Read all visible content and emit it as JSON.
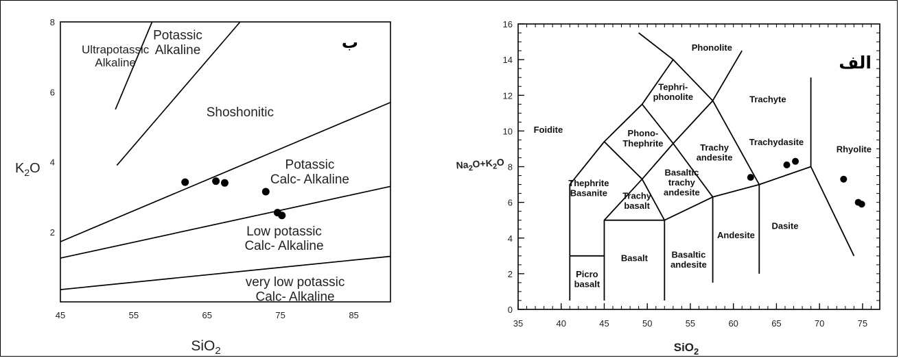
{
  "chart_data": [
    {
      "type": "scatter",
      "panel_tag": "ب",
      "xlabel": "SiO2",
      "ylabel": "K2O",
      "xlim": [
        45,
        90
      ],
      "ylim": [
        0,
        8
      ],
      "xticks": [
        45,
        55,
        65,
        75,
        85
      ],
      "yticks": [
        2,
        4,
        6,
        8
      ],
      "boundary_lines": [
        [
          [
            52.5,
            5.5
          ],
          [
            57.5,
            8.0
          ]
        ],
        [
          [
            52.7,
            3.9
          ],
          [
            69.5,
            8.0
          ]
        ],
        [
          [
            45,
            1.72
          ],
          [
            90,
            5.7
          ]
        ],
        [
          [
            45,
            1.25
          ],
          [
            90,
            3.3
          ]
        ],
        [
          [
            45,
            0.35
          ],
          [
            90,
            1.3
          ]
        ]
      ],
      "regions": [
        {
          "text": [
            "Ultrapotassic",
            "Alkaline"
          ],
          "x": 52.5,
          "y": 7.1,
          "size": 17
        },
        {
          "text": [
            "Potassic",
            "Alkaline"
          ],
          "x": 61.0,
          "y": 7.5,
          "size": 19
        },
        {
          "text": [
            "Shoshonitic"
          ],
          "x": 69.5,
          "y": 5.3,
          "size": 19
        },
        {
          "text": [
            "Potassic",
            "Calc- Alkaline"
          ],
          "x": 79.0,
          "y": 3.8,
          "size": 19
        },
        {
          "text": [
            "Low potassic",
            "Calc- Alkaline"
          ],
          "x": 75.5,
          "y": 1.9,
          "size": 19
        },
        {
          "text": [
            "very low potassic",
            "Calc- Alkaline"
          ],
          "x": 77.0,
          "y": 0.45,
          "size": 19
        }
      ],
      "points": [
        {
          "x": 62.0,
          "y": 3.42
        },
        {
          "x": 66.2,
          "y": 3.45
        },
        {
          "x": 67.4,
          "y": 3.4
        },
        {
          "x": 73.0,
          "y": 3.15
        },
        {
          "x": 74.6,
          "y": 2.55
        },
        {
          "x": 75.2,
          "y": 2.47
        }
      ]
    },
    {
      "type": "scatter",
      "panel_tag": "الف",
      "xlabel": "SiO2",
      "ylabel": "Na2O+K2O",
      "xlim": [
        35,
        77
      ],
      "ylim": [
        0,
        16
      ],
      "xticks": [
        35,
        40,
        45,
        50,
        55,
        60,
        65,
        70,
        75
      ],
      "yticks": [
        0,
        2,
        4,
        6,
        8,
        10,
        12,
        14,
        16
      ],
      "boundary_lines": [
        [
          [
            41,
            0.5
          ],
          [
            41,
            7.0
          ],
          [
            45,
            9.4
          ],
          [
            49.4,
            11.5
          ],
          [
            53,
            14
          ],
          [
            57.6,
            11.7
          ],
          [
            63,
            7.0
          ],
          [
            69,
            8.0
          ],
          [
            69,
            13
          ]
        ],
        [
          [
            45,
            0.5
          ],
          [
            45,
            5.0
          ],
          [
            52,
            5.0
          ],
          [
            57.6,
            6.3
          ],
          [
            63,
            7.0
          ]
        ],
        [
          [
            52,
            0.5
          ],
          [
            52,
            5.0
          ]
        ],
        [
          [
            57.6,
            1.5
          ],
          [
            57.6,
            6.3
          ]
        ],
        [
          [
            63,
            2.0
          ],
          [
            63,
            7.0
          ]
        ],
        [
          [
            41,
            3.0
          ],
          [
            45,
            3.0
          ]
        ],
        [
          [
            45,
            5.0
          ],
          [
            49.4,
            7.3
          ],
          [
            53,
            9.3
          ],
          [
            57.6,
            11.7
          ],
          [
            61,
            14.5
          ]
        ],
        [
          [
            49.4,
            7.3
          ],
          [
            52,
            5.0
          ]
        ],
        [
          [
            53,
            9.3
          ],
          [
            57.6,
            6.3
          ]
        ],
        [
          [
            45,
            9.4
          ],
          [
            49.4,
            7.3
          ]
        ],
        [
          [
            49.4,
            11.5
          ],
          [
            53,
            9.3
          ]
        ],
        [
          [
            53,
            14
          ],
          [
            49,
            15.5
          ]
        ],
        [
          [
            69,
            8.0
          ],
          [
            74,
            3.0
          ]
        ]
      ],
      "regions": [
        {
          "text": [
            "Phonolite"
          ],
          "x": 57.5,
          "y": 14.5
        },
        {
          "text": [
            "Tephri-",
            "phonolite"
          ],
          "x": 53.0,
          "y": 12.3
        },
        {
          "text": [
            "Trachyte"
          ],
          "x": 64.0,
          "y": 11.6
        },
        {
          "text": [
            "Foidite"
          ],
          "x": 38.5,
          "y": 9.9
        },
        {
          "text": [
            "Phono-",
            "Thephrite"
          ],
          "x": 49.5,
          "y": 9.7
        },
        {
          "text": [
            "Trachy",
            "andesite"
          ],
          "x": 57.8,
          "y": 8.9
        },
        {
          "text": [
            "Trachydasite"
          ],
          "x": 65.0,
          "y": 9.2
        },
        {
          "text": [
            "Rhyolite"
          ],
          "x": 74.0,
          "y": 8.8
        },
        {
          "text": [
            "Basaltic",
            "trachy",
            "andesite"
          ],
          "x": 54.0,
          "y": 7.5
        },
        {
          "text": [
            "Thephrite",
            "Basanite"
          ],
          "x": 43.2,
          "y": 6.9
        },
        {
          "text": [
            "Trachy",
            "basalt"
          ],
          "x": 48.8,
          "y": 6.2
        },
        {
          "text": [
            "Andesite"
          ],
          "x": 60.3,
          "y": 4.0
        },
        {
          "text": [
            "Dasite"
          ],
          "x": 66.0,
          "y": 4.5
        },
        {
          "text": [
            "Basalt"
          ],
          "x": 48.5,
          "y": 2.7
        },
        {
          "text": [
            "Basaltic",
            "andesite"
          ],
          "x": 54.8,
          "y": 2.9
        },
        {
          "text": [
            "Picro",
            "basalt"
          ],
          "x": 43.0,
          "y": 1.8
        }
      ],
      "points": [
        {
          "x": 62.0,
          "y": 7.4
        },
        {
          "x": 66.2,
          "y": 8.1
        },
        {
          "x": 67.2,
          "y": 8.3
        },
        {
          "x": 72.8,
          "y": 7.3
        },
        {
          "x": 74.5,
          "y": 6.0
        },
        {
          "x": 74.9,
          "y": 5.9
        }
      ]
    }
  ]
}
